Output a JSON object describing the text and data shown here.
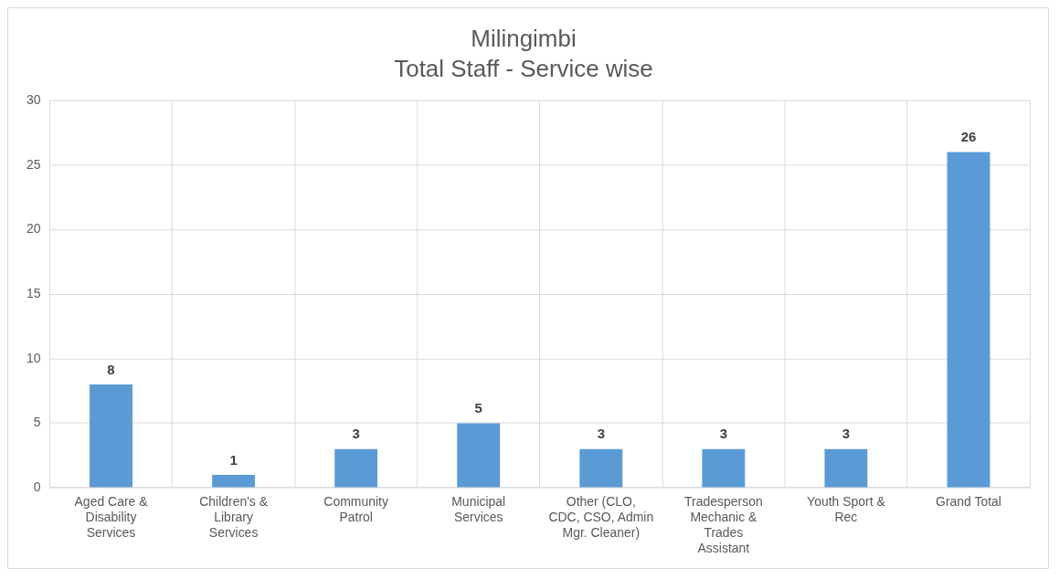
{
  "chart_data": {
    "type": "bar",
    "title": "Milingimbi",
    "subtitle": "Total Staff - Service wise",
    "categories": [
      "Aged Care & Disability Services",
      "Children's & Library Services",
      "Community Patrol",
      "Municipal Services",
      "Other (CLO, CDC, CSO, Admin Mgr. Cleaner)",
      "Tradesperson Mechanic & Trades Assistant",
      "Youth Sport & Rec",
      "Grand Total"
    ],
    "values": [
      8,
      1,
      3,
      5,
      3,
      3,
      3,
      26
    ],
    "color": "#5b9bd5",
    "ylim": [
      0,
      30
    ],
    "yticks": [
      0,
      5,
      10,
      15,
      20,
      25,
      30
    ],
    "grid": true,
    "data_labels": true
  }
}
